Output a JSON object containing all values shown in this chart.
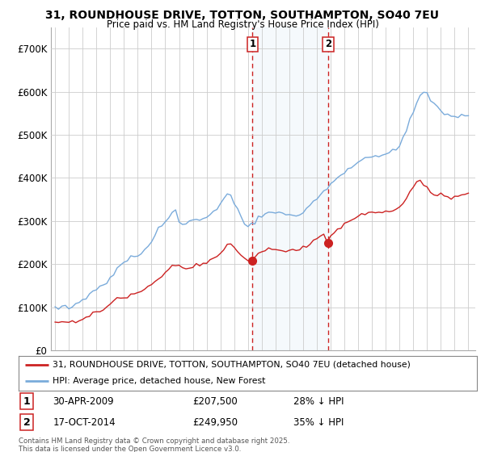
{
  "title": "31, ROUNDHOUSE DRIVE, TOTTON, SOUTHAMPTON, SO40 7EU",
  "subtitle": "Price paid vs. HM Land Registry's House Price Index (HPI)",
  "ylim": [
    0,
    750000
  ],
  "yticks": [
    0,
    100000,
    200000,
    300000,
    400000,
    500000,
    600000,
    700000
  ],
  "ytick_labels": [
    "£0",
    "£100K",
    "£200K",
    "£300K",
    "£400K",
    "£500K",
    "£600K",
    "£700K"
  ],
  "red_color": "#cc2222",
  "blue_color": "#7aabdb",
  "shade_color": "#daeaf7",
  "vline_color": "#cc2222",
  "purchase1_year": 2009.33,
  "purchase2_year": 2014.83,
  "purchase1_price": 207500,
  "purchase2_price": 249950,
  "legend_line1": "31, ROUNDHOUSE DRIVE, TOTTON, SOUTHAMPTON, SO40 7EU (detached house)",
  "legend_line2": "HPI: Average price, detached house, New Forest",
  "footnote": "Contains HM Land Registry data © Crown copyright and database right 2025.\nThis data is licensed under the Open Government Licence v3.0.",
  "background_color": "#ffffff",
  "grid_color": "#cccccc",
  "hpi_years": [
    1995.0,
    1995.25,
    1995.5,
    1995.75,
    1996.0,
    1996.25,
    1996.5,
    1996.75,
    1997.0,
    1997.25,
    1997.5,
    1997.75,
    1998.0,
    1998.25,
    1998.5,
    1998.75,
    1999.0,
    1999.25,
    1999.5,
    1999.75,
    2000.0,
    2000.25,
    2000.5,
    2000.75,
    2001.0,
    2001.25,
    2001.5,
    2001.75,
    2002.0,
    2002.25,
    2002.5,
    2002.75,
    2003.0,
    2003.25,
    2003.5,
    2003.75,
    2004.0,
    2004.25,
    2004.5,
    2004.75,
    2005.0,
    2005.25,
    2005.5,
    2005.75,
    2006.0,
    2006.25,
    2006.5,
    2006.75,
    2007.0,
    2007.25,
    2007.5,
    2007.75,
    2008.0,
    2008.25,
    2008.5,
    2008.75,
    2009.0,
    2009.25,
    2009.5,
    2009.75,
    2010.0,
    2010.25,
    2010.5,
    2010.75,
    2011.0,
    2011.25,
    2011.5,
    2011.75,
    2012.0,
    2012.25,
    2012.5,
    2012.75,
    2013.0,
    2013.25,
    2013.5,
    2013.75,
    2014.0,
    2014.25,
    2014.5,
    2014.75,
    2015.0,
    2015.25,
    2015.5,
    2015.75,
    2016.0,
    2016.25,
    2016.5,
    2016.75,
    2017.0,
    2017.25,
    2017.5,
    2017.75,
    2018.0,
    2018.25,
    2018.5,
    2018.75,
    2019.0,
    2019.25,
    2019.5,
    2019.75,
    2020.0,
    2020.25,
    2020.5,
    2020.75,
    2021.0,
    2021.25,
    2021.5,
    2021.75,
    2022.0,
    2022.25,
    2022.5,
    2022.75,
    2023.0,
    2023.25,
    2023.5,
    2023.75,
    2024.0,
    2024.25,
    2024.5,
    2024.75,
    2025.0
  ],
  "hpi_values": [
    100000,
    99000,
    100000,
    101000,
    103000,
    105000,
    108000,
    112000,
    118000,
    122000,
    128000,
    135000,
    140000,
    145000,
    150000,
    158000,
    168000,
    178000,
    188000,
    198000,
    205000,
    210000,
    215000,
    218000,
    220000,
    225000,
    232000,
    240000,
    250000,
    265000,
    278000,
    290000,
    300000,
    310000,
    318000,
    322000,
    298000,
    295000,
    296000,
    298000,
    300000,
    302000,
    304000,
    305000,
    308000,
    314000,
    320000,
    326000,
    338000,
    352000,
    362000,
    358000,
    345000,
    330000,
    312000,
    295000,
    288000,
    290000,
    296000,
    308000,
    315000,
    318000,
    320000,
    318000,
    316000,
    318000,
    320000,
    316000,
    312000,
    314000,
    316000,
    318000,
    322000,
    328000,
    336000,
    344000,
    352000,
    360000,
    368000,
    375000,
    385000,
    395000,
    402000,
    408000,
    415000,
    420000,
    425000,
    430000,
    435000,
    440000,
    445000,
    448000,
    450000,
    452000,
    455000,
    458000,
    460000,
    462000,
    465000,
    468000,
    475000,
    490000,
    510000,
    535000,
    555000,
    575000,
    595000,
    600000,
    595000,
    585000,
    572000,
    565000,
    558000,
    552000,
    548000,
    545000,
    542000,
    540000,
    542000,
    545000,
    548000
  ],
  "red_years": [
    1995.0,
    1995.25,
    1995.5,
    1995.75,
    1996.0,
    1996.25,
    1996.5,
    1996.75,
    1997.0,
    1997.25,
    1997.5,
    1997.75,
    1998.0,
    1998.25,
    1998.5,
    1998.75,
    1999.0,
    1999.25,
    1999.5,
    1999.75,
    2000.0,
    2000.25,
    2000.5,
    2000.75,
    2001.0,
    2001.25,
    2001.5,
    2001.75,
    2002.0,
    2002.25,
    2002.5,
    2002.75,
    2003.0,
    2003.25,
    2003.5,
    2003.75,
    2004.0,
    2004.25,
    2004.5,
    2004.75,
    2005.0,
    2005.25,
    2005.5,
    2005.75,
    2006.0,
    2006.25,
    2006.5,
    2006.75,
    2007.0,
    2007.25,
    2007.5,
    2007.75,
    2008.0,
    2008.25,
    2008.5,
    2008.75,
    2009.0,
    2009.25,
    2009.5,
    2009.75,
    2010.0,
    2010.25,
    2010.5,
    2010.75,
    2011.0,
    2011.25,
    2011.5,
    2011.75,
    2012.0,
    2012.25,
    2012.5,
    2012.75,
    2013.0,
    2013.25,
    2013.5,
    2013.75,
    2014.0,
    2014.25,
    2014.5,
    2014.75,
    2015.0,
    2015.25,
    2015.5,
    2015.75,
    2016.0,
    2016.25,
    2016.5,
    2016.75,
    2017.0,
    2017.25,
    2017.5,
    2017.75,
    2018.0,
    2018.25,
    2018.5,
    2018.75,
    2019.0,
    2019.25,
    2019.5,
    2019.75,
    2020.0,
    2020.25,
    2020.5,
    2020.75,
    2021.0,
    2021.25,
    2021.5,
    2021.75,
    2022.0,
    2022.25,
    2022.5,
    2022.75,
    2023.0,
    2023.25,
    2023.5,
    2023.75,
    2024.0,
    2024.25,
    2024.5,
    2024.75,
    2025.0
  ],
  "red_values": [
    65000,
    64000,
    63000,
    63500,
    64000,
    65000,
    67000,
    70000,
    74000,
    78000,
    82000,
    87000,
    90000,
    93000,
    96000,
    100000,
    105000,
    110000,
    115000,
    120000,
    124000,
    127000,
    130000,
    133000,
    135000,
    138000,
    142000,
    146000,
    152000,
    160000,
    168000,
    175000,
    182000,
    188000,
    193000,
    196000,
    195000,
    193000,
    192000,
    193000,
    194000,
    196000,
    198000,
    200000,
    204000,
    208000,
    213000,
    218000,
    225000,
    235000,
    245000,
    248000,
    242000,
    232000,
    220000,
    210000,
    207500,
    210000,
    215000,
    222000,
    228000,
    232000,
    235000,
    233000,
    230000,
    232000,
    234000,
    232000,
    228000,
    230000,
    232000,
    234000,
    238000,
    242000,
    248000,
    254000,
    260000,
    265000,
    270000,
    249950,
    262000,
    272000,
    280000,
    288000,
    295000,
    300000,
    305000,
    308000,
    312000,
    315000,
    318000,
    320000,
    322000,
    320000,
    318000,
    318000,
    320000,
    322000,
    325000,
    328000,
    332000,
    340000,
    355000,
    368000,
    378000,
    385000,
    390000,
    385000,
    380000,
    370000,
    362000,
    358000,
    362000,
    360000,
    358000,
    356000,
    358000,
    360000,
    362000,
    364000,
    365000
  ]
}
